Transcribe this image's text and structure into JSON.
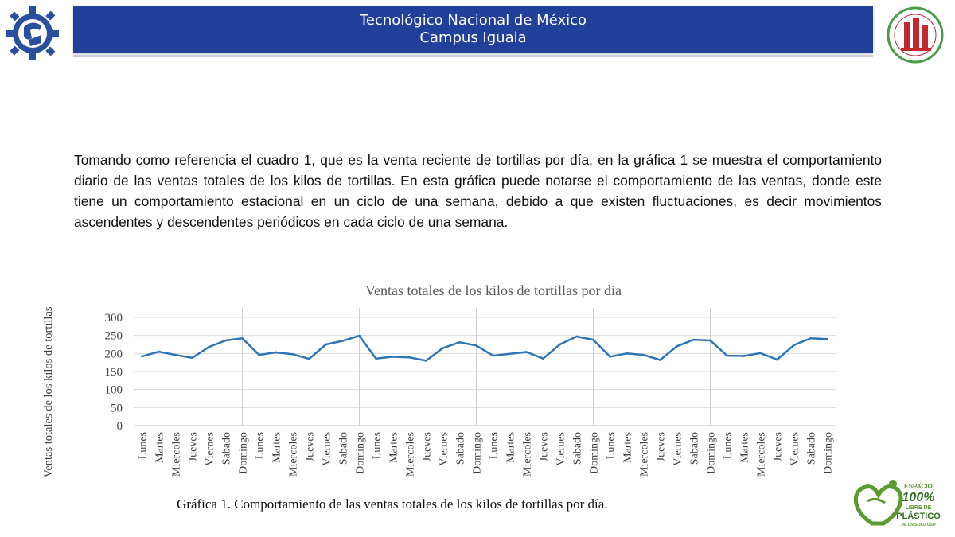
{
  "header": {
    "line1": "Tecnológico Nacional de México",
    "line2": "Campus Iguala",
    "band_color": "#21409a",
    "logo_left": "tecnm-gear-logo",
    "logo_right": "iti-seal-logo"
  },
  "paragraph": "Tomando como referencia el cuadro 1, que es la venta reciente de tortillas por día, en la gráfica 1 se muestra el comportamiento diario de las ventas totales de los kilos de tortillas. En esta gráfica puede notarse el comportamiento de las ventas, donde este tiene un comportamiento estacional en un ciclo de una semana, debido a que existen fluctuaciones, es decir movimientos ascendentes y descendentes periódicos en cada ciclo de una semana.",
  "caption": "Gráfica 1. Comportamiento de las ventas totales de los kilos de tortillas por día.",
  "badge": {
    "line1": "ESPACIO",
    "line2": "100%",
    "line3": "LIBRE DE",
    "line4": "PLÁSTICO",
    "line5": "DE UN SOLO USO"
  },
  "chart_data": {
    "type": "line",
    "title": "Ventas totales de los kilos de tortillas por dia",
    "xlabel": "",
    "ylabel": "Ventas totales  de los kilos de tortillas",
    "ylim": [
      0,
      300
    ],
    "yticks": [
      0,
      50,
      100,
      150,
      200,
      250,
      300
    ],
    "grid": true,
    "legend": "none",
    "line_color": "#2e75b6",
    "categories": [
      "Lunes",
      "Martes",
      "Miercoles",
      "Jueves",
      "Viernes",
      "Sabado",
      "Domingo",
      "Lunes",
      "Martes",
      "Miercoles",
      "Jueves",
      "Viernes",
      "Sabado",
      "Domingo",
      "Lunes",
      "Martes",
      "Miercoles",
      "Jueves",
      "Viernes",
      "Sabado",
      "Domingo",
      "Lunes",
      "Martes",
      "Miercoles",
      "Jueves",
      "Viernes",
      "Sabado",
      "Domingo",
      "Lunes",
      "Martes",
      "Miercoles",
      "Jueves",
      "Viernes",
      "Sabado",
      "Domingo",
      "Lunes",
      "Martes",
      "Miercoles",
      "Jueves",
      "Viernes",
      "Sabado",
      "Domingo"
    ],
    "values": [
      192,
      205,
      196,
      188,
      218,
      236,
      242,
      196,
      203,
      198,
      185,
      225,
      235,
      249,
      186,
      191,
      189,
      180,
      215,
      231,
      222,
      194,
      199,
      204,
      186,
      225,
      247,
      238,
      191,
      200,
      196,
      182,
      220,
      238,
      236,
      194,
      193,
      201,
      183,
      223,
      242,
      240
    ]
  }
}
